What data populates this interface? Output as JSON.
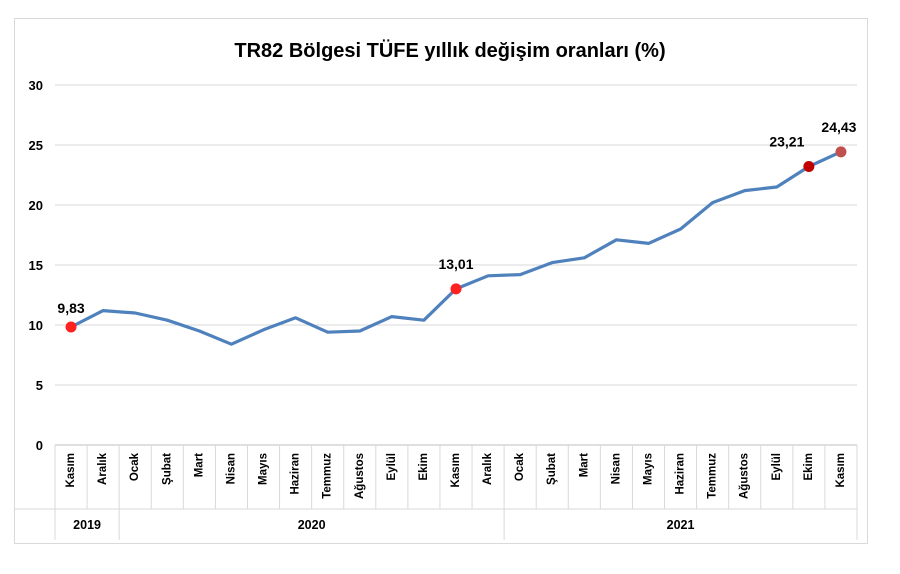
{
  "chart_data": {
    "type": "line",
    "title": "TR82 Bölgesi TÜFE yıllık değişim oranları (%)",
    "xlabel": "",
    "ylabel": "",
    "ylim": [
      0,
      30
    ],
    "yticks": [
      0,
      5,
      10,
      15,
      20,
      25,
      30
    ],
    "grid": true,
    "categories": [
      "Kasım",
      "Aralık",
      "Ocak",
      "Şubat",
      "Mart",
      "Nisan",
      "Mayıs",
      "Haziran",
      "Temmuz",
      "Ağustos",
      "Eylül",
      "Ekim",
      "Kasım",
      "Aralık",
      "Ocak",
      "Şubat",
      "Mart",
      "Nisan",
      "Mayıs",
      "Haziran",
      "Temmuz",
      "Ağustos",
      "Eylül",
      "Ekim",
      "Kasım"
    ],
    "year_groups": [
      {
        "label": "2019",
        "start": 0,
        "end": 1
      },
      {
        "label": "2020",
        "start": 2,
        "end": 13
      },
      {
        "label": "2021",
        "start": 14,
        "end": 24
      }
    ],
    "series": [
      {
        "values": [
          9.83,
          11.2,
          11.0,
          10.4,
          9.5,
          8.4,
          9.6,
          10.6,
          9.4,
          9.5,
          10.7,
          10.4,
          13.01,
          14.1,
          14.2,
          15.2,
          15.6,
          17.1,
          16.8,
          18.0,
          20.2,
          21.2,
          21.5,
          23.21,
          24.43
        ],
        "color": "#4f81bd"
      }
    ],
    "highlights": [
      {
        "index": 0,
        "label": "9,83",
        "color": "#ff2020"
      },
      {
        "index": 12,
        "label": "13,01",
        "color": "#ff2020"
      },
      {
        "index": 23,
        "label": "23,21",
        "color": "#c00000"
      },
      {
        "index": 24,
        "label": "24,43",
        "color": "#c0504d"
      }
    ]
  }
}
